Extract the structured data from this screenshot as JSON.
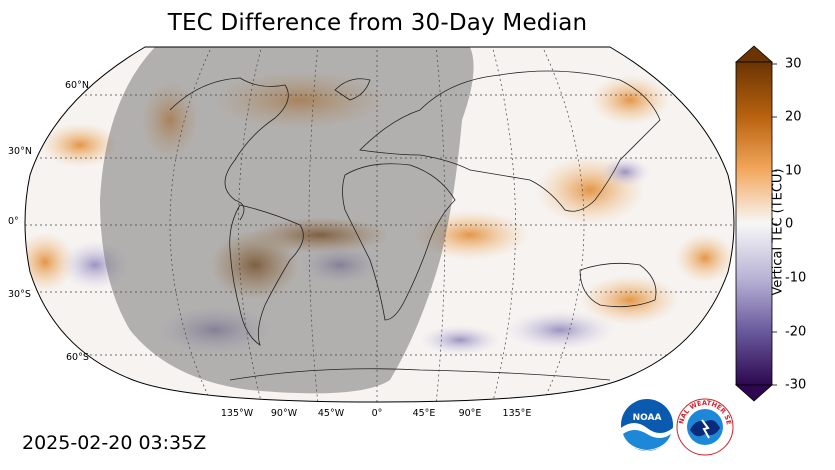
{
  "title": "TEC Difference from 30-Day Median",
  "timestamp": "2025-02-20 03:35Z",
  "lat_labels": [
    "60°N",
    "30°N",
    "0°",
    "30°S",
    "60°S"
  ],
  "lon_labels": [
    "135°W",
    "90°W",
    "45°W",
    "0°",
    "45°E",
    "90°E",
    "135°E"
  ],
  "colorbar": {
    "label": "Vertical TEC (TECU)",
    "ticks": [
      "30",
      "20",
      "10",
      "0",
      "-10",
      "-20",
      "-30"
    ],
    "range": [
      -30,
      30
    ],
    "colors": {
      "max": "#7a3e05",
      "high": "#e0862a",
      "zero": "#f7f7f7",
      "low": "#8c82b8",
      "min": "#2d0850"
    }
  },
  "logos": {
    "noaa": {
      "text": "NOAA",
      "color": "#0a5bb0"
    },
    "nws": {
      "text": "NATIONAL WEATHER SERVICE",
      "color": "#d1202b"
    }
  }
}
